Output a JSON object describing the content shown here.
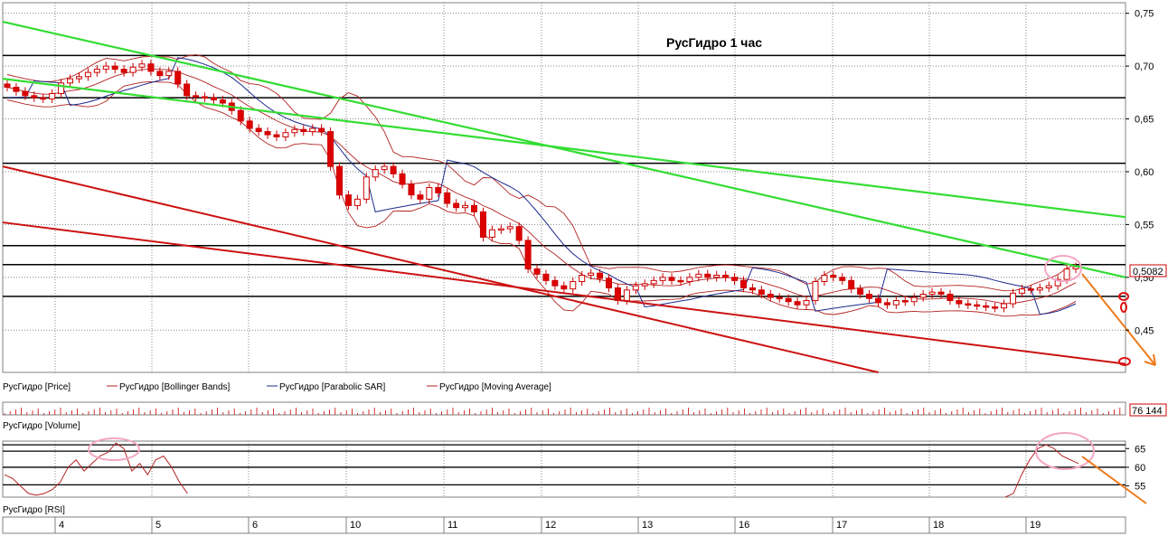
{
  "chart_data": {
    "type": "candlestick",
    "title": "РусГидро   1 час",
    "price_panel": {
      "ylim": [
        0.41,
        0.76
      ],
      "y_ticks": [
        "0,75",
        "0,70",
        "0,65",
        "0,60",
        "0,55",
        "0,50",
        "0,45"
      ],
      "y_tick_values": [
        0.75,
        0.7,
        0.65,
        0.6,
        0.55,
        0.5,
        0.45
      ],
      "last_price_label": "0,5082",
      "last_price": 0.5082,
      "horizontal_levels": [
        0.71,
        0.67,
        0.608,
        0.53,
        0.512,
        0.482
      ],
      "green_trendlines": [
        {
          "from": [
            0,
            0.742
          ],
          "to": [
            1,
            0.5
          ]
        },
        {
          "from": [
            0,
            0.688
          ],
          "to": [
            1,
            0.557
          ]
        }
      ],
      "red_trendlines": [
        {
          "from": [
            0,
            0.605
          ],
          "to": [
            0.78,
            0.41
          ]
        },
        {
          "from": [
            0,
            0.552
          ],
          "to": [
            1,
            0.418
          ]
        }
      ],
      "candles": [
        0.68,
        0.676,
        0.672,
        0.67,
        0.669,
        0.674,
        0.684,
        0.688,
        0.69,
        0.694,
        0.697,
        0.7,
        0.697,
        0.694,
        0.699,
        0.702,
        0.695,
        0.691,
        0.695,
        0.683,
        0.672,
        0.671,
        0.67,
        0.668,
        0.665,
        0.658,
        0.648,
        0.641,
        0.638,
        0.635,
        0.633,
        0.637,
        0.64,
        0.638,
        0.641,
        0.638,
        0.605,
        0.578,
        0.568,
        0.574,
        0.595,
        0.602,
        0.605,
        0.598,
        0.588,
        0.578,
        0.574,
        0.585,
        0.58,
        0.57,
        0.566,
        0.568,
        0.562,
        0.538,
        0.545,
        0.546,
        0.548,
        0.535,
        0.508,
        0.503,
        0.497,
        0.492,
        0.489,
        0.496,
        0.502,
        0.504,
        0.499,
        0.49,
        0.478,
        0.488,
        0.492,
        0.494,
        0.497,
        0.5,
        0.497,
        0.496,
        0.5,
        0.503,
        0.5,
        0.502,
        0.5,
        0.497,
        0.49,
        0.488,
        0.484,
        0.481,
        0.48,
        0.477,
        0.474,
        0.478,
        0.496,
        0.502,
        0.5,
        0.497,
        0.489,
        0.484,
        0.48,
        0.476,
        0.474,
        0.478,
        0.477,
        0.481,
        0.484,
        0.486,
        0.484,
        0.478,
        0.475,
        0.474,
        0.473,
        0.472,
        0.471,
        0.475,
        0.485,
        0.489,
        0.488,
        0.49,
        0.492,
        0.498,
        0.508,
        0.51
      ]
    },
    "legend": [
      {
        "name": "РусГидро [Price]",
        "color": "#cc0000"
      },
      {
        "name": "РусГидро [Bollinger Bands]",
        "color": "#b22222"
      },
      {
        "name": "РусГидро [Parabolic SAR]",
        "color": "#1c2a8c"
      },
      {
        "name": "РусГидро [Moving Average]",
        "color": "#b22222"
      }
    ],
    "volume_panel": {
      "label": "РусГидро [Volume]",
      "last_value_label": "76 144"
    },
    "rsi_panel": {
      "label": "РусГидро [RSI]",
      "ylim": [
        52,
        67
      ],
      "y_ticks": [
        "65",
        "60",
        "55"
      ],
      "y_tick_values": [
        65,
        60,
        55
      ],
      "levels": [
        66,
        64.3,
        60,
        55.3
      ],
      "series_left": [
        58,
        57,
        55,
        53,
        52.5,
        53,
        54,
        56,
        60,
        62,
        59,
        61,
        63,
        64,
        66.5,
        65,
        59,
        61,
        58,
        62,
        63,
        60,
        56,
        53
      ],
      "series_right": [
        52,
        53,
        58,
        62,
        65,
        66,
        65,
        63,
        62,
        61
      ]
    },
    "x_axis": {
      "labels": [
        "4",
        "5",
        "6",
        "10",
        "11",
        "12",
        "13",
        "16",
        "17",
        "18",
        "19"
      ]
    }
  }
}
